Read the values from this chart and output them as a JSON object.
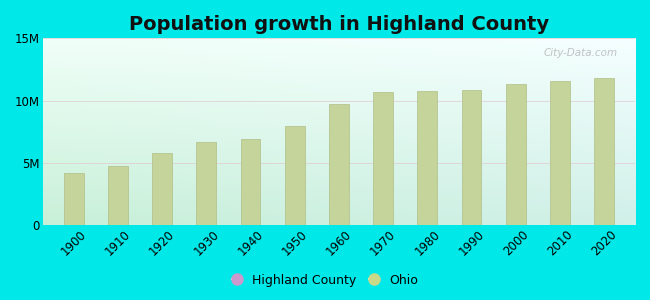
{
  "title": "Population growth in Highland County",
  "years": [
    1900,
    1910,
    1920,
    1930,
    1940,
    1950,
    1960,
    1970,
    1980,
    1990,
    2000,
    2010,
    2020
  ],
  "ohio_values": [
    4157545,
    4767121,
    5759394,
    6646697,
    6907612,
    7946627,
    9706397,
    10652017,
    10797630,
    10847115,
    11353140,
    11536504,
    11799448
  ],
  "bar_color": "#c5d49a",
  "bar_edge_color": "#b0bf85",
  "background_color_outer": "#00e8e8",
  "background_grad_topleft": "#e8f5f0",
  "background_grad_bottomleft": "#c8f0d8",
  "background_grad_topright": "#e0f0f8",
  "background_grad_bottomright": "#d8f8f0",
  "ylim": [
    0,
    15000000
  ],
  "yticks": [
    0,
    5000000,
    10000000,
    15000000
  ],
  "ytick_labels": [
    "0",
    "5M",
    "10M",
    "15M"
  ],
  "watermark": "City-Data.com",
  "legend_highland_color": "#cc99cc",
  "legend_ohio_color": "#c8d98a",
  "title_fontsize": 14,
  "tick_fontsize": 8.5,
  "bar_width": 4.5
}
